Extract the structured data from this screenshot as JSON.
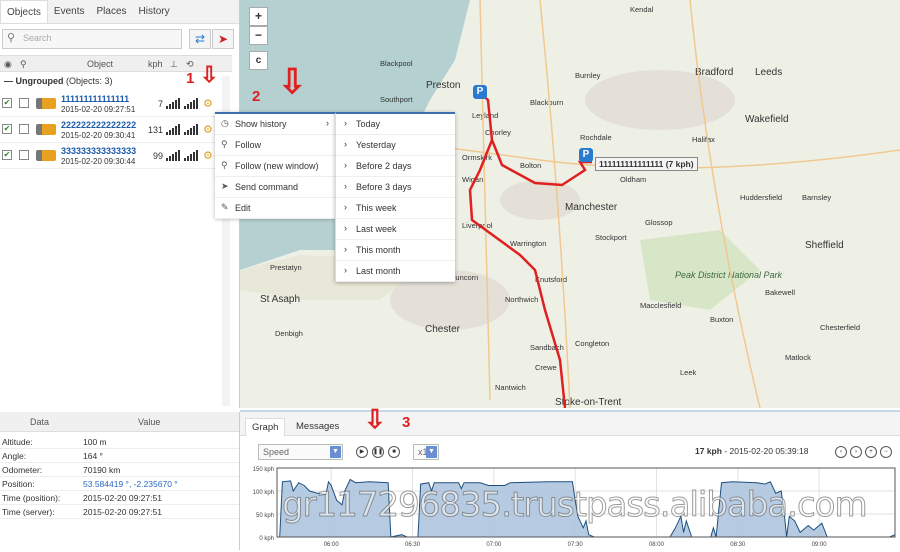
{
  "left_tabs": [
    "Objects",
    "Events",
    "Places",
    "History"
  ],
  "search": {
    "placeholder": "Search"
  },
  "table_headers": {
    "object": "Object",
    "kph": "kph"
  },
  "group": {
    "name": "Ungrouped",
    "count": "(Objects: 3)"
  },
  "objects": [
    {
      "name": "111111111111111",
      "time": "2015-02-20 09:27:51",
      "kph": "7",
      "visible": true,
      "follow": false
    },
    {
      "name": "222222222222222",
      "time": "2015-02-20 09:30:41",
      "kph": "131",
      "visible": true,
      "follow": false
    },
    {
      "name": "333333333333333",
      "time": "2015-02-20 09:30:44",
      "kph": "99",
      "visible": true,
      "follow": false
    }
  ],
  "annotations": {
    "one": "1",
    "two": "2",
    "three": "3"
  },
  "context_menu": [
    {
      "label": "Show history",
      "icon": "clock-icon"
    },
    {
      "label": "Follow",
      "icon": "search-icon"
    },
    {
      "label": "Follow (new window)",
      "icon": "search-icon"
    },
    {
      "label": "Send command",
      "icon": "send-icon"
    },
    {
      "label": "Edit",
      "icon": "pencil-icon"
    }
  ],
  "history_submenu": [
    "Today",
    "Yesterday",
    "Before 2 days",
    "Before 3 days",
    "This week",
    "Last week",
    "This month",
    "Last month"
  ],
  "data_panel": {
    "headers": {
      "data": "Data",
      "value": "Value"
    },
    "rows": [
      {
        "label": "Altitude:",
        "value": "100 m"
      },
      {
        "label": "Angle:",
        "value": "164 °"
      },
      {
        "label": "Odometer:",
        "value": "70190 km"
      },
      {
        "label": "Position:",
        "value": "53.584419 °, -2.235670 °",
        "link": true
      },
      {
        "label": "Time (position):",
        "value": "2015-02-20 09:27:51"
      },
      {
        "label": "Time (server):",
        "value": "2015-02-20 09:27:51"
      }
    ]
  },
  "map": {
    "zoom_in": "+",
    "zoom_out": "−",
    "c_button": "c",
    "tooltip": "111111111111111 (7 kph)",
    "parking_label": "P",
    "places": [
      "Kendal",
      "Bradford",
      "Leeds",
      "Preston",
      "Burnley",
      "Blackpool",
      "Rochdale",
      "Wakefield",
      "Bolton",
      "Wigan",
      "Manchester",
      "Warrington",
      "Stockport",
      "Sheffield",
      "Chester",
      "Northwich",
      "Knutsford",
      "Crewe",
      "Congleton",
      "Stoke-on-Trent",
      "Macclesfield",
      "Buxton",
      "Chesterfield",
      "Prestatyn",
      "St Asaph",
      "Denbigh",
      "Southport",
      "Ormskirk",
      "Liverpool",
      "Huddersfield",
      "Halifax",
      "Barnsley",
      "Blackburn",
      "Chorley",
      "Leyland",
      "Glossop",
      "Bakewell",
      "Matlock",
      "Leek",
      "Nantwich",
      "Sandbach",
      "Runcorn",
      "Oldham"
    ],
    "peak_label": "Peak District National Park",
    "route_color": "#e02020"
  },
  "graph_panel": {
    "tabs": [
      "Graph",
      "Messages"
    ],
    "sensor": "Speed",
    "speed_multiplier": "x1",
    "status_value": "17 kph",
    "status_time": "- 2015-02-20 05:39:18"
  },
  "chart_data": {
    "type": "area",
    "xlabel": "",
    "ylabel": "",
    "y_ticks": [
      "150 kph",
      "100 kph",
      "50 kph",
      "0 kph"
    ],
    "x_ticks": [
      "06:00",
      "06:30",
      "07:00",
      "07:30",
      "08:00",
      "08:30",
      "09:00"
    ],
    "xlim": [
      "05:40",
      "09:28"
    ],
    "ylim": [
      0,
      150
    ],
    "grid": true,
    "fill_color": "#a9c2dc",
    "line_color": "#1f4f80",
    "series": [
      {
        "values": [
          [
            "05:41",
            0
          ],
          [
            "05:42",
            120
          ],
          [
            "05:45",
            122
          ],
          [
            "05:46",
            100
          ],
          [
            "05:48",
            118
          ],
          [
            "05:50",
            112
          ],
          [
            "05:52",
            100
          ],
          [
            "05:55",
            95
          ],
          [
            "05:58",
            92
          ],
          [
            "05:59",
            120
          ],
          [
            "06:00",
            112
          ],
          [
            "06:02",
            80
          ],
          [
            "06:04",
            70
          ],
          [
            "06:05",
            100
          ],
          [
            "06:07",
            125
          ],
          [
            "06:09",
            118
          ],
          [
            "06:14",
            120
          ],
          [
            "06:21",
            118
          ],
          [
            "06:22",
            0
          ],
          [
            "06:26",
            5
          ],
          [
            "06:28",
            0
          ],
          [
            "06:32",
            0
          ],
          [
            "06:33",
            115
          ],
          [
            "06:36",
            118
          ],
          [
            "06:37",
            100
          ],
          [
            "06:38",
            118
          ],
          [
            "06:47",
            118
          ],
          [
            "06:48",
            105
          ],
          [
            "06:49",
            118
          ],
          [
            "06:55",
            118
          ],
          [
            "06:58",
            112
          ],
          [
            "07:04",
            112
          ],
          [
            "07:06",
            118
          ],
          [
            "07:20",
            120
          ],
          [
            "07:29",
            120
          ],
          [
            "07:30",
            80
          ],
          [
            "07:31",
            45
          ],
          [
            "07:33",
            20
          ],
          [
            "07:34",
            35
          ],
          [
            "07:35",
            5
          ],
          [
            "07:37",
            0
          ],
          [
            "08:05",
            0
          ],
          [
            "08:07",
            20
          ],
          [
            "08:09",
            45
          ],
          [
            "08:10",
            10
          ],
          [
            "08:11",
            35
          ],
          [
            "08:13",
            0
          ],
          [
            "08:20",
            0
          ],
          [
            "08:21",
            20
          ],
          [
            "08:22",
            0
          ],
          [
            "08:24",
            118
          ],
          [
            "08:28",
            120
          ],
          [
            "08:37",
            118
          ],
          [
            "08:40",
            115
          ],
          [
            "08:42",
            120
          ],
          [
            "08:44",
            95
          ],
          [
            "08:46",
            100
          ],
          [
            "08:47",
            60
          ],
          [
            "08:48",
            0
          ],
          [
            "08:49",
            45
          ],
          [
            "08:51",
            35
          ],
          [
            "08:53",
            10
          ],
          [
            "08:56",
            25
          ],
          [
            "08:58",
            15
          ],
          [
            "09:01",
            30
          ],
          [
            "09:03",
            0
          ],
          [
            "09:26",
            0
          ],
          [
            "09:28",
            5
          ]
        ]
      }
    ]
  },
  "watermark": "gr117296835.trustpass.alibaba.com"
}
